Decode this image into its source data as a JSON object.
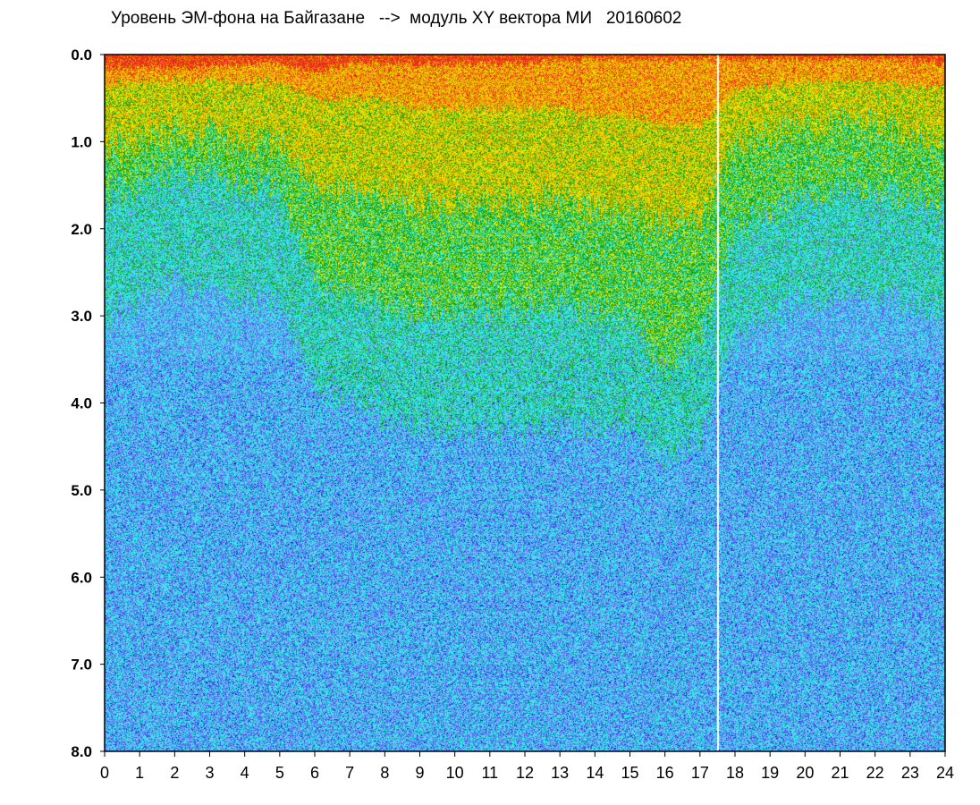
{
  "chart_data": {
    "type": "heatmap",
    "title": "Уровень ЭМ-фона на Байгазане   -->  модуль XY вектора МИ   20160602",
    "x_ticks": [
      "0",
      "1",
      "2",
      "3",
      "4",
      "5",
      "6",
      "7",
      "8",
      "9",
      "10",
      "11",
      "12",
      "13",
      "14",
      "15",
      "16",
      "17",
      "18",
      "19",
      "20",
      "21",
      "22",
      "23",
      "24"
    ],
    "y_ticks": [
      "0.0",
      "1.0",
      "2.0",
      "3.0",
      "4.0",
      "5.0",
      "6.0",
      "7.0",
      "8.0"
    ],
    "xlim": [
      0,
      24
    ],
    "ylim": [
      0,
      8
    ],
    "y_inverted": true,
    "grid": false,
    "colors": {
      "red": "#e83018",
      "orange": "#f0a000",
      "yellow": "#e6e600",
      "green": "#18a818",
      "cyan": "#30e6e6",
      "light_blue": "#78c8f0",
      "blue": "#5a64f0",
      "dark_blue": "#1020d0"
    },
    "colorscale_order": [
      "red",
      "orange",
      "yellow",
      "green",
      "cyan",
      "light_blue",
      "blue",
      "dark_blue"
    ],
    "density_profile": [
      {
        "hour": 0,
        "level": [
          0.15,
          0.35,
          1.1,
          1.6,
          3.0
        ]
      },
      {
        "hour": 1,
        "level": [
          0.15,
          0.3,
          1.0,
          1.5,
          2.8
        ]
      },
      {
        "hour": 2,
        "level": [
          0.15,
          0.3,
          0.9,
          1.3,
          2.6
        ]
      },
      {
        "hour": 3,
        "level": [
          0.15,
          0.3,
          0.9,
          1.4,
          2.7
        ]
      },
      {
        "hour": 4,
        "level": [
          0.1,
          0.3,
          1.0,
          1.5,
          2.8
        ]
      },
      {
        "hour": 5,
        "level": [
          0.1,
          0.3,
          1.0,
          1.5,
          2.8
        ]
      },
      {
        "hour": 6,
        "level": [
          0.2,
          0.5,
          1.5,
          2.6,
          3.8
        ]
      },
      {
        "hour": 7,
        "level": [
          0.1,
          0.5,
          1.6,
          2.8,
          4.0
        ]
      },
      {
        "hour": 8,
        "level": [
          0.1,
          0.5,
          1.6,
          2.9,
          4.2
        ]
      },
      {
        "hour": 9,
        "level": [
          0.1,
          0.6,
          1.7,
          2.9,
          4.2
        ]
      },
      {
        "hour": 10,
        "level": [
          0.1,
          0.6,
          1.7,
          2.9,
          4.3
        ]
      },
      {
        "hour": 11,
        "level": [
          0.1,
          0.6,
          1.7,
          2.9,
          4.3
        ]
      },
      {
        "hour": 12,
        "level": [
          0.1,
          0.6,
          1.7,
          2.9,
          4.3
        ]
      },
      {
        "hour": 13,
        "level": [
          0.05,
          0.6,
          1.6,
          2.8,
          4.2
        ]
      },
      {
        "hour": 14,
        "level": [
          0.05,
          0.7,
          1.8,
          3.0,
          4.3
        ]
      },
      {
        "hour": 15,
        "level": [
          0.05,
          0.7,
          1.8,
          3.0,
          4.3
        ]
      },
      {
        "hour": 16,
        "level": [
          0.05,
          0.8,
          1.9,
          3.6,
          4.6
        ]
      },
      {
        "hour": 17,
        "level": [
          0.05,
          0.8,
          1.9,
          3.2,
          4.4
        ]
      },
      {
        "hour": 18,
        "level": [
          0.05,
          0.4,
          1.0,
          2.0,
          3.2
        ]
      },
      {
        "hour": 19,
        "level": [
          0.05,
          0.35,
          0.9,
          1.8,
          3.0
        ]
      },
      {
        "hour": 20,
        "level": [
          0.05,
          0.3,
          0.8,
          1.6,
          2.8
        ]
      },
      {
        "hour": 21,
        "level": [
          0.05,
          0.3,
          0.8,
          1.6,
          2.8
        ]
      },
      {
        "hour": 22,
        "level": [
          0.05,
          0.3,
          0.8,
          1.6,
          2.8
        ]
      },
      {
        "hour": 23,
        "level": [
          0.05,
          0.35,
          0.9,
          1.6,
          2.8
        ]
      },
      {
        "hour": 24,
        "level": [
          0.1,
          0.35,
          1.0,
          1.7,
          3.0
        ]
      }
    ],
    "gaps_hours": [
      17.5
    ]
  }
}
